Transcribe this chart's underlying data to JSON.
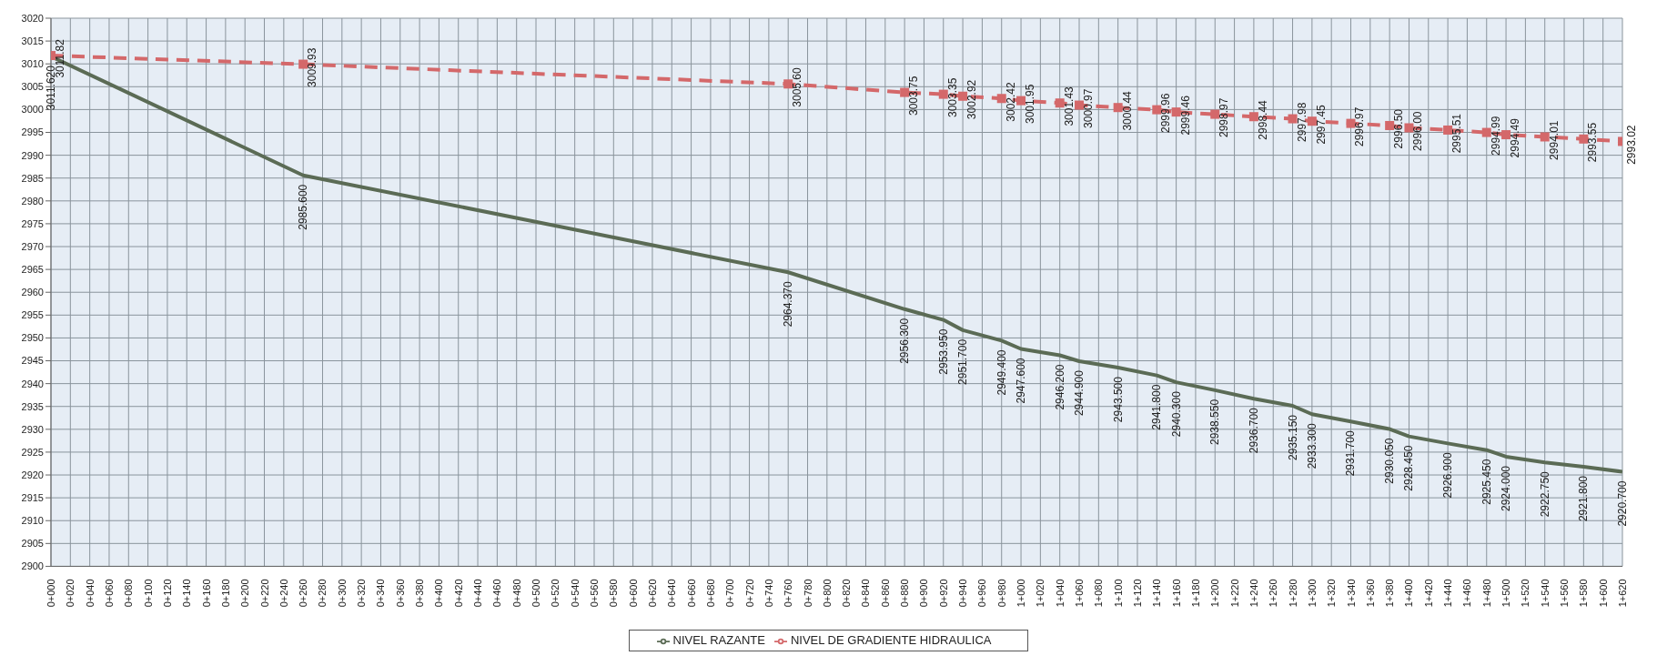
{
  "chart_data": {
    "type": "line",
    "categories": [
      "0+000",
      "0+020",
      "0+040",
      "0+060",
      "0+080",
      "0+100",
      "0+120",
      "0+140",
      "0+160",
      "0+180",
      "0+200",
      "0+220",
      "0+240",
      "0+260",
      "0+280",
      "0+300",
      "0+320",
      "0+340",
      "0+360",
      "0+380",
      "0+400",
      "0+420",
      "0+440",
      "0+460",
      "0+480",
      "0+500",
      "0+520",
      "0+540",
      "0+560",
      "0+580",
      "0+600",
      "0+620",
      "0+640",
      "0+660",
      "0+680",
      "0+700",
      "0+720",
      "0+740",
      "0+760",
      "0+780",
      "0+800",
      "0+820",
      "0+840",
      "0+860",
      "0+880",
      "0+900",
      "0+920",
      "0+940",
      "0+960",
      "0+980",
      "1+000",
      "1+020",
      "1+040",
      "1+060",
      "1+080",
      "1+100",
      "1+120",
      "1+140",
      "1+160",
      "1+180",
      "1+200",
      "1+220",
      "1+240",
      "1+260",
      "1+280",
      "1+300",
      "1+320",
      "1+340",
      "1+360",
      "1+380",
      "1+400",
      "1+420",
      "1+440",
      "1+460",
      "1+480",
      "1+500",
      "1+520",
      "1+540",
      "1+560",
      "1+580",
      "1+600",
      "1+620"
    ],
    "series": [
      {
        "name": "NIVEL RAZANTE",
        "color": "#5b6b55",
        "marker": "none",
        "line_style": "solid",
        "values": [
          3011.62,
          null,
          null,
          null,
          null,
          null,
          null,
          null,
          null,
          null,
          null,
          null,
          null,
          2985.6,
          null,
          null,
          null,
          null,
          null,
          null,
          null,
          null,
          null,
          null,
          null,
          null,
          null,
          null,
          null,
          null,
          null,
          null,
          null,
          null,
          null,
          null,
          null,
          null,
          2964.37,
          null,
          null,
          null,
          null,
          null,
          2956.3,
          null,
          2953.95,
          2951.7,
          null,
          2949.4,
          2947.6,
          null,
          2946.2,
          2944.9,
          null,
          2943.5,
          null,
          2941.8,
          2940.3,
          null,
          2938.55,
          null,
          2936.7,
          null,
          2935.15,
          2933.3,
          null,
          2931.7,
          null,
          2930.05,
          2928.45,
          null,
          2926.9,
          null,
          2925.45,
          2924.0,
          null,
          2922.75,
          null,
          2921.8,
          null,
          2920.7
        ],
        "value_labels": [
          "3011.620",
          null,
          null,
          null,
          null,
          null,
          null,
          null,
          null,
          null,
          null,
          null,
          null,
          "2985.600",
          null,
          null,
          null,
          null,
          null,
          null,
          null,
          null,
          null,
          null,
          null,
          null,
          null,
          null,
          null,
          null,
          null,
          null,
          null,
          null,
          null,
          null,
          null,
          null,
          "2964.370",
          null,
          null,
          null,
          null,
          null,
          "2956.300",
          null,
          "2953.950",
          "2951.700",
          null,
          "2949.400",
          "2947.600",
          null,
          "2946.200",
          "2944.900",
          null,
          "2943.500",
          null,
          "2941.800",
          "2940.300",
          null,
          "2938.550",
          null,
          "2936.700",
          null,
          "2935.150",
          "2933.300",
          null,
          "2931.700",
          null,
          "2930.050",
          "2928.450",
          null,
          "2926.900",
          null,
          "2925.450",
          "2924.000",
          null,
          "2922.750",
          null,
          "2921.800",
          null,
          "2920.700"
        ]
      },
      {
        "name": "NIVEL DE GRADIENTE HIDRAULICA",
        "color": "#d4686a",
        "marker": "square",
        "line_style": "dashed",
        "values": [
          3011.82,
          null,
          null,
          null,
          null,
          null,
          null,
          null,
          null,
          null,
          null,
          null,
          null,
          3009.93,
          null,
          null,
          null,
          null,
          null,
          null,
          null,
          null,
          null,
          null,
          null,
          null,
          null,
          null,
          null,
          null,
          null,
          null,
          null,
          null,
          null,
          null,
          null,
          null,
          3005.6,
          null,
          null,
          null,
          null,
          null,
          3003.75,
          null,
          3003.35,
          3002.92,
          null,
          3002.42,
          3001.95,
          null,
          3001.43,
          3000.97,
          null,
          3000.44,
          null,
          2999.96,
          2999.46,
          null,
          2998.97,
          null,
          2998.44,
          null,
          2997.98,
          2997.45,
          null,
          2996.97,
          null,
          2996.5,
          2996.0,
          null,
          2995.51,
          null,
          2994.99,
          2994.49,
          null,
          2994.01,
          null,
          2993.55,
          null,
          2993.02
        ],
        "value_labels": [
          "3011.82",
          null,
          null,
          null,
          null,
          null,
          null,
          null,
          null,
          null,
          null,
          null,
          null,
          "3009.93",
          null,
          null,
          null,
          null,
          null,
          null,
          null,
          null,
          null,
          null,
          null,
          null,
          null,
          null,
          null,
          null,
          null,
          null,
          null,
          null,
          null,
          null,
          null,
          null,
          "3005.60",
          null,
          null,
          null,
          null,
          null,
          "3003.75",
          null,
          "3003.35",
          "3002.92",
          null,
          "3002.42",
          "3001.95",
          null,
          "3001.43",
          "3000.97",
          null,
          "3000.44",
          null,
          "2999.96",
          "2999.46",
          null,
          "2998.97",
          null,
          "2998.44",
          null,
          "2997.98",
          "2997.45",
          null,
          "2996.97",
          null,
          "2996.50",
          "2996.00",
          null,
          "2995.51",
          null,
          "2994.99",
          "2994.49",
          null,
          "2994.01",
          null,
          "2993.55",
          null,
          "2993.02"
        ]
      }
    ],
    "ylim": [
      2900,
      3020
    ],
    "yticks": [
      2900,
      2905,
      2910,
      2915,
      2920,
      2925,
      2930,
      2935,
      2940,
      2945,
      2950,
      2955,
      2960,
      2965,
      2970,
      2975,
      2980,
      2985,
      2990,
      2995,
      3000,
      3005,
      3010,
      3015,
      3020
    ],
    "grid": true,
    "legend": "bottom"
  }
}
